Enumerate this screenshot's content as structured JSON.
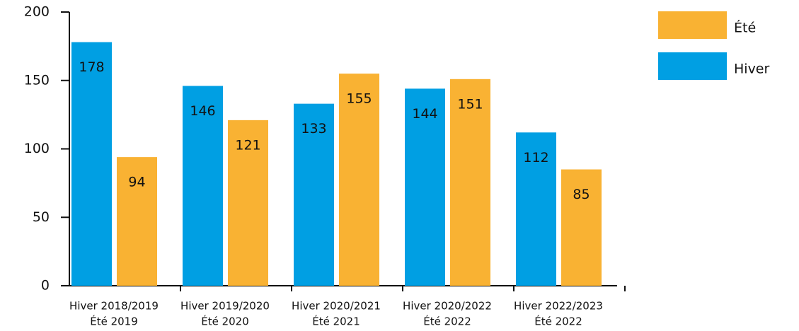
{
  "chart_data": {
    "type": "bar",
    "categories": [
      [
        "Hiver 2018/2019",
        "Été 2019"
      ],
      [
        "Hiver 2019/2020",
        "Été 2020"
      ],
      [
        "Hiver 2020/2021",
        "Été 2021"
      ],
      [
        "Hiver 2020/2022",
        "Été 2022"
      ],
      [
        "Hiver 2022/2023",
        "Été 2022"
      ]
    ],
    "series": [
      {
        "name": "Hiver",
        "color": "#009fe3",
        "values": [
          178,
          146,
          133,
          144,
          112
        ]
      },
      {
        "name": "Été",
        "color": "#f9b233",
        "values": [
          94,
          121,
          155,
          151,
          85
        ]
      }
    ],
    "ylim": [
      0,
      200
    ],
    "yticks": [
      0,
      50,
      100,
      150,
      200
    ],
    "grid": false,
    "legend": "top-right"
  }
}
